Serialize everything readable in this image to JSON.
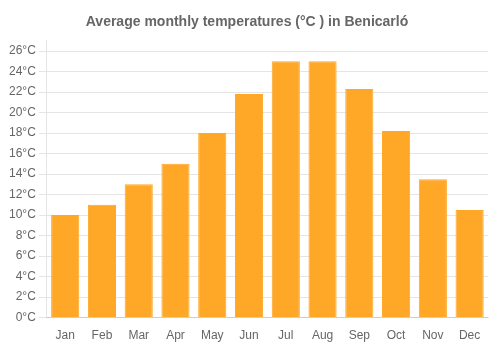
{
  "chart_data": {
    "type": "bar",
    "title": "Average monthly temperatures (°C ) in Benicarló",
    "categories": [
      "Jan",
      "Feb",
      "Mar",
      "Apr",
      "May",
      "Jun",
      "Jul",
      "Aug",
      "Sep",
      "Oct",
      "Nov",
      "Dec"
    ],
    "values": [
      10.0,
      11.0,
      13.0,
      15.0,
      18.0,
      21.8,
      25.0,
      25.0,
      22.3,
      18.2,
      13.5,
      10.5
    ],
    "color": "#FFA726",
    "ylim": [
      0,
      27
    ],
    "yticks": [
      {
        "value": 0,
        "label": "0°C"
      },
      {
        "value": 2,
        "label": "2°C"
      },
      {
        "value": 4,
        "label": "4°C"
      },
      {
        "value": 6,
        "label": "6°C"
      },
      {
        "value": 8,
        "label": "8°C"
      },
      {
        "value": 10,
        "label": "10°C"
      },
      {
        "value": 12,
        "label": "12°C"
      },
      {
        "value": 14,
        "label": "14°C"
      },
      {
        "value": 16,
        "label": "16°C"
      },
      {
        "value": 18,
        "label": "18°C"
      },
      {
        "value": 20,
        "label": "20°C"
      },
      {
        "value": 22,
        "label": "22°C"
      },
      {
        "value": 24,
        "label": "24°C"
      },
      {
        "value": 26,
        "label": "26°C"
      }
    ],
    "grid": true
  }
}
